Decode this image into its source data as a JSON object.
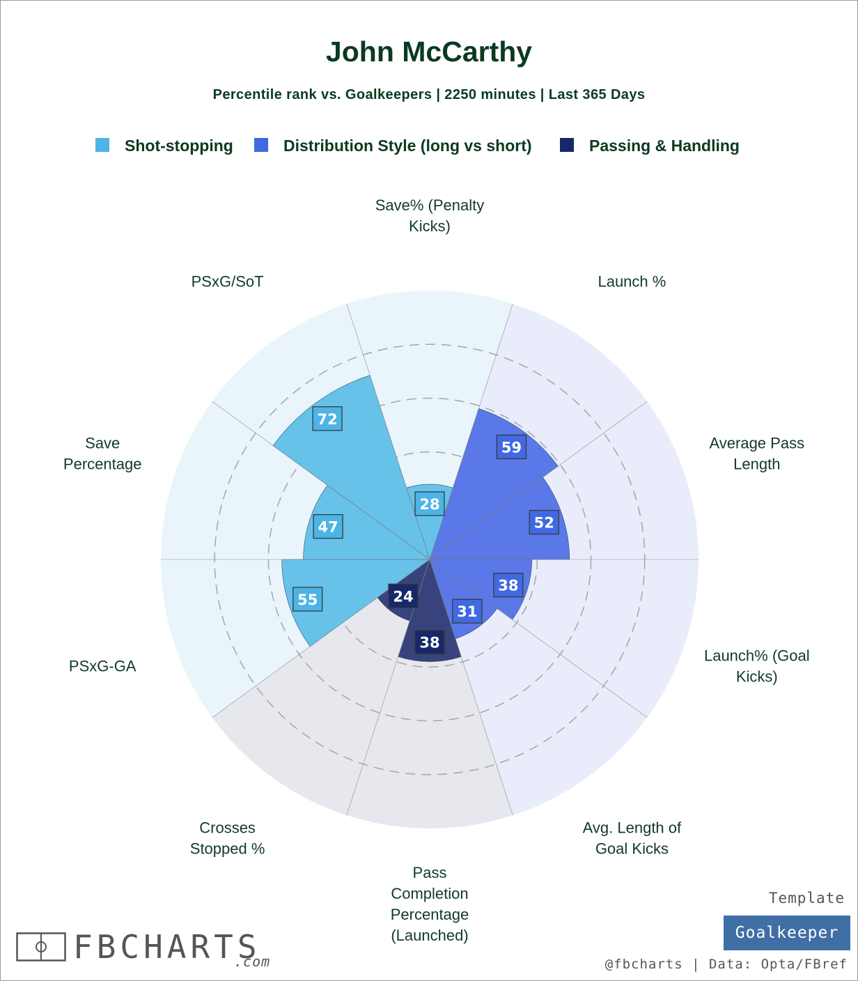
{
  "chart_data": {
    "type": "polar-bar",
    "title": "John McCarthy",
    "subtitle": "Percentile rank vs. Goalkeepers | 2250 minutes | Last 365 Days",
    "r_range": [
      0,
      100
    ],
    "grid_rings": [
      20,
      40,
      60,
      80
    ],
    "legend": [
      {
        "name": "Shot-stopping",
        "color": "#4db4e6"
      },
      {
        "name": "Distribution Style (long vs short)",
        "color": "#4169e1"
      },
      {
        "name": "Passing & Handling",
        "color": "#172868"
      }
    ],
    "metrics": [
      {
        "label": "Save% (Penalty Kicks)",
        "label_lines": [
          "Save% (Penalty",
          "Kicks)"
        ],
        "value": 28,
        "group": 0
      },
      {
        "label": "Launch %",
        "label_lines": [
          "Launch %"
        ],
        "value": 59,
        "group": 1
      },
      {
        "label": "Average Pass Length",
        "label_lines": [
          "Average Pass",
          "Length"
        ],
        "value": 52,
        "group": 1
      },
      {
        "label": "Launch% (Goal Kicks)",
        "label_lines": [
          "Launch% (Goal",
          "Kicks)"
        ],
        "value": 38,
        "group": 1
      },
      {
        "label": "Avg. Length of Goal Kicks",
        "label_lines": [
          "Avg. Length of",
          "Goal Kicks"
        ],
        "value": 31,
        "group": 1
      },
      {
        "label": "Pass Completion Percentage (Launched)",
        "label_lines": [
          "Pass",
          "Completion",
          "Percentage",
          "(Launched)"
        ],
        "value": 38,
        "group": 2
      },
      {
        "label": "Crosses Stopped %",
        "label_lines": [
          "Crosses",
          "Stopped %"
        ],
        "value": 24,
        "group": 2
      },
      {
        "label": "PSxG-GA",
        "label_lines": [
          "PSxG-GA"
        ],
        "value": 55,
        "group": 0
      },
      {
        "label": "Save Percentage",
        "label_lines": [
          "Save",
          "Percentage"
        ],
        "value": 47,
        "group": 0
      },
      {
        "label": "PSxG/SoT",
        "label_lines": [
          "PSxG/SoT"
        ],
        "value": 72,
        "group": 0
      }
    ]
  },
  "group_colors": {
    "bar": [
      "#67c2ea",
      "#5a78e8",
      "#37437a"
    ],
    "box": [
      "#4db4e6",
      "#4169e1",
      "#172868"
    ],
    "background": [
      "#e9f5fb",
      "#e9ecfb",
      "#e6e8ee"
    ]
  },
  "footer": {
    "template_label": "Template",
    "template_name": "Goalkeeper",
    "credit": "@fbcharts | Data: Opta/FBref",
    "brand_name": "FBCHARTS",
    "brand_suffix": ".com"
  }
}
